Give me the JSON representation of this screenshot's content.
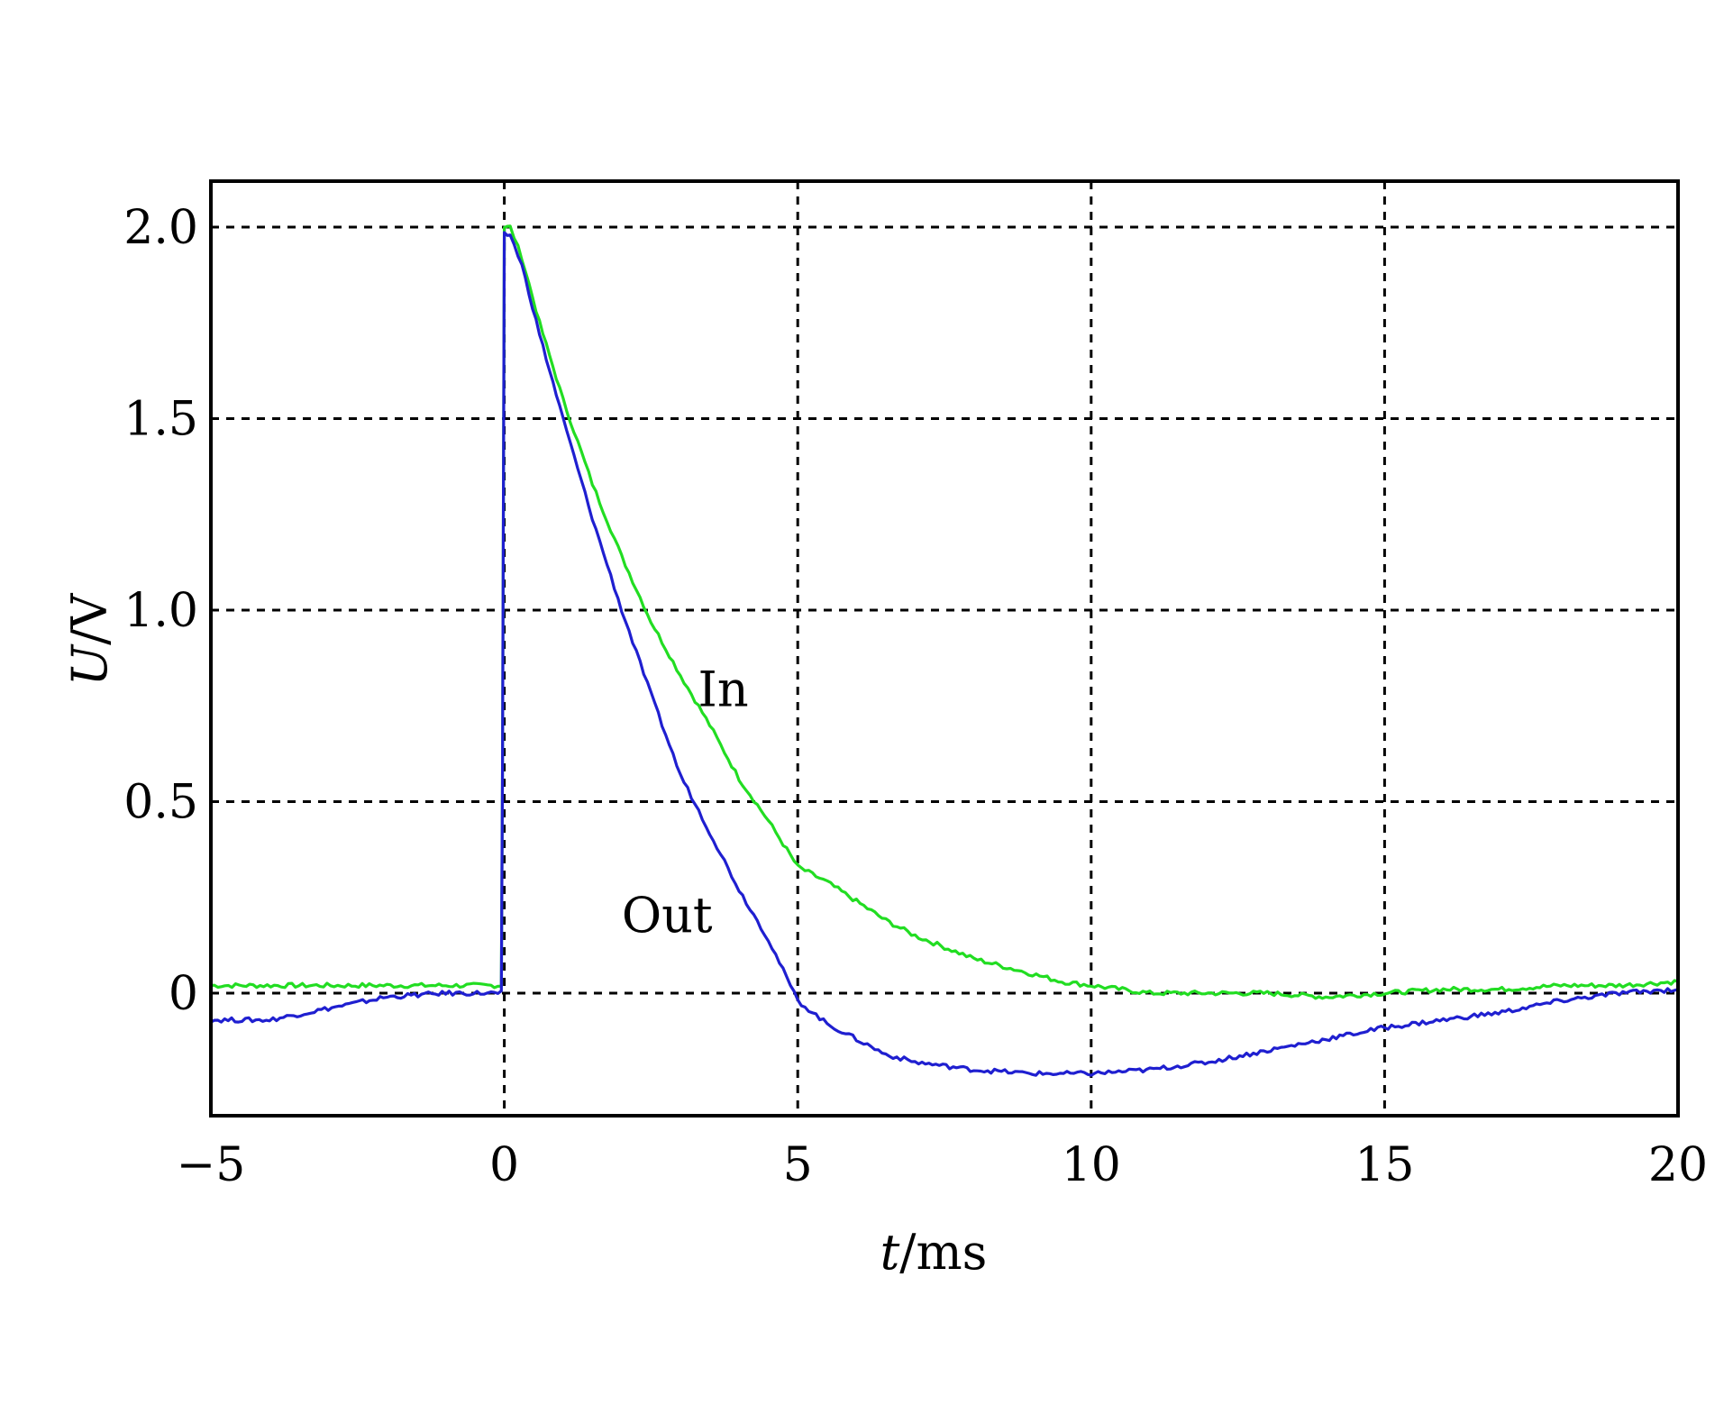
{
  "chart_data": {
    "type": "line",
    "title": "",
    "xlabel": {
      "italic": "t",
      "rest": "/ms"
    },
    "ylabel": {
      "italic": "U",
      "rest": "/V"
    },
    "xlim": [
      -5,
      20
    ],
    "ylim": [
      -0.32,
      2.12
    ],
    "x_ticks": [
      -5,
      0,
      5,
      10,
      15,
      20
    ],
    "x_tick_labels": [
      "−5",
      "0",
      "5",
      "10",
      "15",
      "20"
    ],
    "y_ticks": [
      0,
      0.5,
      1.0,
      1.5,
      2.0
    ],
    "y_tick_labels": [
      "0",
      "0.5",
      "1.0",
      "1.5",
      "2.0"
    ],
    "grid": true,
    "legend": "none",
    "annotations": [
      {
        "text": "In",
        "series": "In",
        "x": 3.3,
        "y": 0.75
      },
      {
        "text": "Out",
        "series": "Out",
        "x": 2.0,
        "y": 0.16
      }
    ],
    "series": [
      {
        "name": "In",
        "color": "#22dd22",
        "points": [
          [
            -5,
            0.02
          ],
          [
            -2,
            0.02
          ],
          [
            -0.05,
            0.02
          ],
          [
            -0.03,
            0.6
          ],
          [
            0.0,
            2.0
          ],
          [
            0.1,
            2.0
          ],
          [
            0.3,
            1.92
          ],
          [
            0.6,
            1.75
          ],
          [
            1.0,
            1.55
          ],
          [
            1.5,
            1.33
          ],
          [
            2.0,
            1.14
          ],
          [
            2.5,
            0.97
          ],
          [
            3.0,
            0.83
          ],
          [
            3.5,
            0.7
          ],
          [
            4.0,
            0.56
          ],
          [
            4.5,
            0.45
          ],
          [
            5.0,
            0.33
          ],
          [
            5.5,
            0.29
          ],
          [
            6.0,
            0.24
          ],
          [
            6.5,
            0.19
          ],
          [
            7.0,
            0.15
          ],
          [
            7.5,
            0.12
          ],
          [
            8.0,
            0.09
          ],
          [
            8.5,
            0.07
          ],
          [
            9.0,
            0.05
          ],
          [
            9.5,
            0.03
          ],
          [
            10.0,
            0.02
          ],
          [
            11.0,
            0.0
          ],
          [
            12.0,
            0.0
          ],
          [
            13.0,
            0.0
          ],
          [
            14.0,
            -0.01
          ],
          [
            15.0,
            0.0
          ],
          [
            16.0,
            0.01
          ],
          [
            17.0,
            0.01
          ],
          [
            18.0,
            0.02
          ],
          [
            19.0,
            0.02
          ],
          [
            20.0,
            0.03
          ]
        ]
      },
      {
        "name": "Out",
        "color": "#1f1fd0",
        "points": [
          [
            -5,
            -0.07
          ],
          [
            -4,
            -0.07
          ],
          [
            -3,
            -0.04
          ],
          [
            -2,
            -0.01
          ],
          [
            -1,
            0.0
          ],
          [
            -0.05,
            0.0
          ],
          [
            -0.03,
            0.58
          ],
          [
            0.0,
            1.98
          ],
          [
            0.1,
            1.98
          ],
          [
            0.3,
            1.9
          ],
          [
            0.6,
            1.72
          ],
          [
            1.0,
            1.5
          ],
          [
            1.5,
            1.24
          ],
          [
            2.0,
            1.0
          ],
          [
            2.5,
            0.78
          ],
          [
            3.0,
            0.57
          ],
          [
            3.5,
            0.42
          ],
          [
            4.0,
            0.27
          ],
          [
            4.5,
            0.14
          ],
          [
            5.0,
            -0.02
          ],
          [
            5.5,
            -0.08
          ],
          [
            6.0,
            -0.12
          ],
          [
            6.5,
            -0.16
          ],
          [
            7.0,
            -0.18
          ],
          [
            8.0,
            -0.2
          ],
          [
            9.0,
            -0.21
          ],
          [
            10.0,
            -0.21
          ],
          [
            11.0,
            -0.2
          ],
          [
            12.0,
            -0.18
          ],
          [
            13.0,
            -0.15
          ],
          [
            14.0,
            -0.12
          ],
          [
            15.0,
            -0.09
          ],
          [
            16.0,
            -0.07
          ],
          [
            17.0,
            -0.05
          ],
          [
            18.0,
            -0.02
          ],
          [
            19.0,
            0.0
          ],
          [
            20.0,
            0.01
          ]
        ]
      }
    ]
  }
}
